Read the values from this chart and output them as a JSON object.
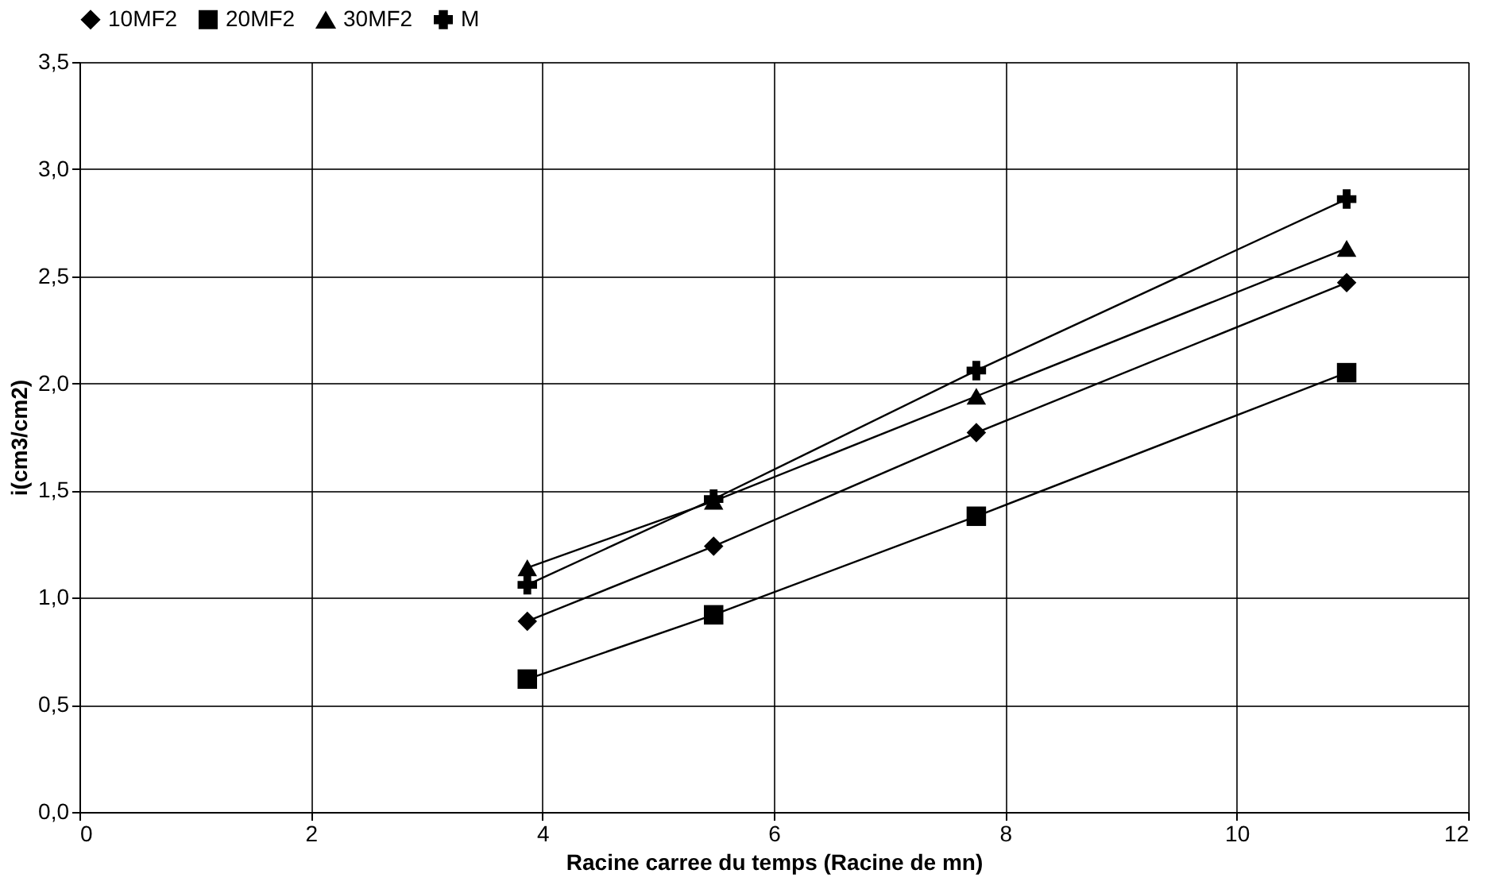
{
  "chart_data": {
    "type": "line",
    "xlabel": "Racine carree du temps (Racine de mn)",
    "ylabel": "i(cm3/cm2)",
    "x": [
      3.87,
      5.48,
      7.75,
      10.95
    ],
    "series": [
      {
        "name": "10MF2",
        "color": "#000000",
        "marker": "diamond",
        "values": [
          0.89,
          1.24,
          1.77,
          2.47
        ]
      },
      {
        "name": "20MF2",
        "color": "#000000",
        "marker": "square",
        "values": [
          0.62,
          0.92,
          1.38,
          2.05
        ]
      },
      {
        "name": "30MF2",
        "color": "#000000",
        "marker": "triangle",
        "values": [
          1.14,
          1.45,
          1.94,
          2.63
        ]
      },
      {
        "name": "M",
        "color": "#000000",
        "marker": "cross",
        "values": [
          1.06,
          1.46,
          2.06,
          2.86
        ]
      }
    ],
    "xlim": [
      0,
      12
    ],
    "xticks": [
      0,
      2,
      4,
      6,
      8,
      10,
      12
    ],
    "ylim": [
      0,
      3.5
    ],
    "yticks": [
      {
        "value": 0,
        "label": "0,0"
      },
      {
        "value": 0.5,
        "label": "0,5"
      },
      {
        "value": 1,
        "label": "1,0"
      },
      {
        "value": 1.5,
        "label": "1,5"
      },
      {
        "value": 2,
        "label": "2,0"
      },
      {
        "value": 2.5,
        "label": "2,5"
      },
      {
        "value": 3,
        "label": "3,0"
      },
      {
        "value": 3.5,
        "label": "3,5"
      }
    ],
    "grid": true,
    "legend": "top",
    "line_style": "solid"
  }
}
